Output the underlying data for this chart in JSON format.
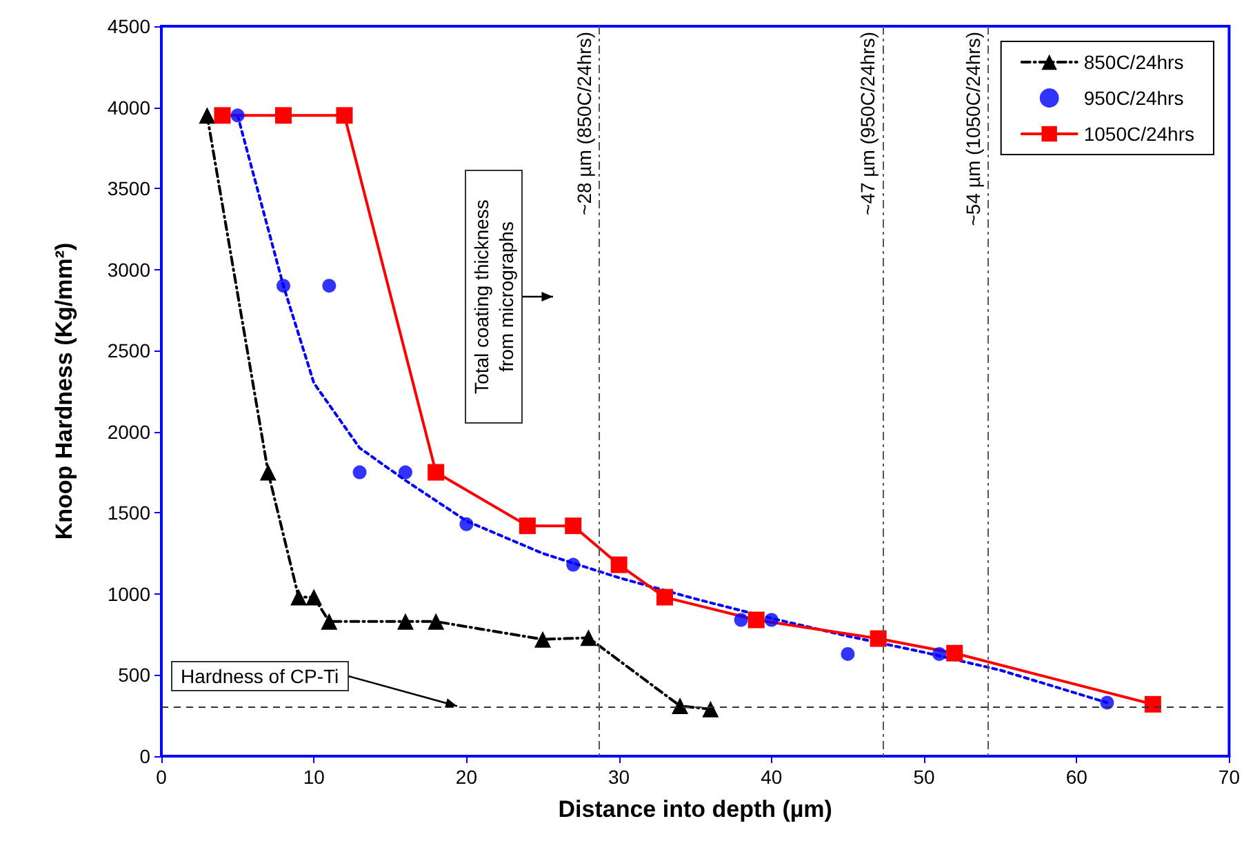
{
  "chart_data": {
    "type": "line",
    "xlabel": "Distance into depth (µm)",
    "ylabel": "Knoop Hardness (Kg/mm²)",
    "xlim": [
      0,
      70
    ],
    "xticks": [
      0,
      10,
      20,
      30,
      40,
      50,
      60,
      70
    ],
    "ylim": [
      0,
      4500
    ],
    "yticks": [
      0,
      500,
      1000,
      1500,
      2000,
      2500,
      3000,
      3500,
      4000,
      4500
    ],
    "grid": false,
    "legend": "top right",
    "series": [
      {
        "name": "850C/24hrs",
        "color": "#000000",
        "marker": "triangle",
        "line_style": "dashed",
        "x": [
          3,
          7,
          9,
          10,
          11,
          16,
          18,
          25,
          28,
          34,
          36
        ],
        "values": [
          3950,
          1750,
          980,
          980,
          830,
          830,
          830,
          720,
          730,
          310,
          290
        ]
      },
      {
        "name": "950C/24hrs",
        "type": "scatter",
        "color": "#0000ff",
        "marker": "circle",
        "x": [
          5,
          8,
          11,
          13,
          16,
          20,
          27,
          38,
          40,
          45,
          51,
          62
        ],
        "values": [
          3950,
          2900,
          2900,
          1750,
          1750,
          1430,
          1180,
          840,
          840,
          630,
          630,
          330
        ]
      },
      {
        "color": "#0000ff",
        "marker": "none",
        "line_style": "dotted",
        "x": [
          5,
          8,
          10,
          13,
          16,
          20,
          25,
          30,
          35,
          40,
          45,
          50,
          55,
          62
        ],
        "values": [
          3950,
          2900,
          2300,
          1900,
          1700,
          1450,
          1250,
          1100,
          970,
          850,
          740,
          640,
          530,
          330
        ]
      },
      {
        "name": "1050C/24hrs",
        "color": "#ff0000",
        "marker": "square",
        "line_style": "solid",
        "x": [
          4,
          8,
          12,
          18,
          24,
          27,
          30,
          33,
          39,
          47,
          52,
          65
        ],
        "values": [
          3950,
          3950,
          3950,
          1750,
          1420,
          1420,
          1180,
          980,
          840,
          725,
          635,
          320
        ]
      }
    ],
    "ref_lines": [
      {
        "axis": "y",
        "value": 300,
        "label": "Hardness of CP-Ti"
      },
      {
        "axis": "x",
        "value": 28.7,
        "label": "~28 µm (850C/24hrs)"
      },
      {
        "axis": "x",
        "value": 47.3,
        "label": "~47 µm (950C/24hrs)"
      },
      {
        "axis": "x",
        "value": 54.2,
        "label": "~54 µm (1050C/24hrs)"
      }
    ],
    "annotations": [
      "Total coating thickness from micrographs"
    ]
  }
}
